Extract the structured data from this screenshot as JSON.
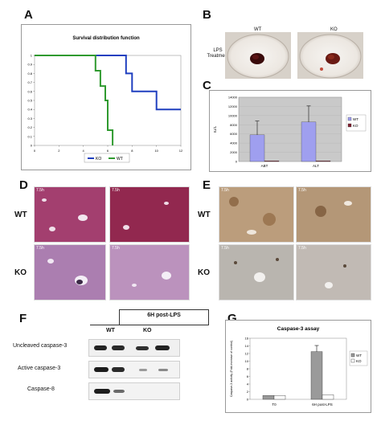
{
  "panels": {
    "a": "A",
    "b": "B",
    "c": "C",
    "d": "D",
    "e": "E",
    "f": "F",
    "g": "G"
  },
  "panel_a": {
    "chart_data": {
      "type": "line",
      "title": "Survival distribution function",
      "x_ticks": [
        "0",
        "2",
        "4",
        "6",
        "8",
        "10",
        "12"
      ],
      "y_ticks": [
        "0",
        "0.1",
        "0.2",
        "0.3",
        "0.4",
        "0.5",
        "0.6",
        "0.7",
        "0.8",
        "0.9",
        "1"
      ],
      "xlim": [
        0,
        12
      ],
      "ylim": [
        0,
        1
      ],
      "series": [
        {
          "name": "KO",
          "color": "#1f3fbf",
          "x": [
            0,
            7.5,
            7.5,
            8.0,
            8.0,
            10.0,
            10.0,
            12.0
          ],
          "y": [
            1,
            1,
            0.8,
            0.8,
            0.6,
            0.6,
            0.4,
            0.4
          ]
        },
        {
          "name": "WT",
          "color": "#2f9a2f",
          "x": [
            0,
            5.0,
            5.0,
            5.4,
            5.4,
            5.8,
            5.8,
            6.0,
            6.0,
            6.4,
            6.4
          ],
          "y": [
            1,
            1,
            0.83,
            0.83,
            0.66,
            0.66,
            0.5,
            0.5,
            0.17,
            0.17,
            0
          ]
        }
      ],
      "legend_position": "bottom"
    }
  },
  "panel_b": {
    "wt_label": "WT",
    "ko_label": "KO",
    "side_label": "LPS\nTreatment"
  },
  "panel_c": {
    "chart_data": {
      "type": "bar",
      "categories": [
        "ABT",
        "ALT"
      ],
      "series": [
        {
          "name": "WT",
          "color": "#9f9fef",
          "values": [
            5800,
            8600
          ],
          "errors": [
            3000,
            3500
          ]
        },
        {
          "name": "KO",
          "color": "#7f1f2f",
          "values": [
            150,
            150
          ],
          "errors": [
            0,
            0
          ]
        }
      ],
      "ylabel": "IU/L",
      "y_ticks": [
        "0",
        "2000",
        "4000",
        "6000",
        "8000",
        "10000",
        "12000",
        "14000"
      ],
      "ylim": [
        0,
        14000
      ],
      "legend_position": "right"
    }
  },
  "panel_d": {
    "wt": "WT",
    "ko": "KO",
    "tile_labels": [
      "7.5h",
      "7.5h",
      "7.5h",
      "7.5h"
    ]
  },
  "panel_e": {
    "wt": "WT",
    "ko": "KO",
    "tile_labels": [
      "7.5h",
      "7.5h",
      "7.5h",
      "7.5h"
    ]
  },
  "panel_f": {
    "header": "6H post-LPS",
    "wt": "WT",
    "ko": "KO",
    "rows": [
      "Uncleaved caspase-3",
      "Active caspase-3",
      "Caspase-8"
    ]
  },
  "panel_g": {
    "chart_data": {
      "type": "bar",
      "title": "Caspase-3 assay",
      "categories": [
        "T0",
        "6H post-LPS"
      ],
      "series": [
        {
          "name": "WT",
          "color": "#9a9a9a",
          "values": [
            1.0,
            12.5
          ],
          "errors": [
            0,
            1.6
          ]
        },
        {
          "name": "KO",
          "color": "#ffffff",
          "values": [
            1.0,
            1.2
          ],
          "errors": [
            0,
            0
          ]
        }
      ],
      "ylabel": "Caspase-3 activity (Fold-increase of control)",
      "y_ticks": [
        "0",
        "2",
        "4",
        "6",
        "8",
        "10",
        "12",
        "14",
        "16"
      ],
      "ylim": [
        0,
        16
      ],
      "legend_position": "right"
    }
  }
}
